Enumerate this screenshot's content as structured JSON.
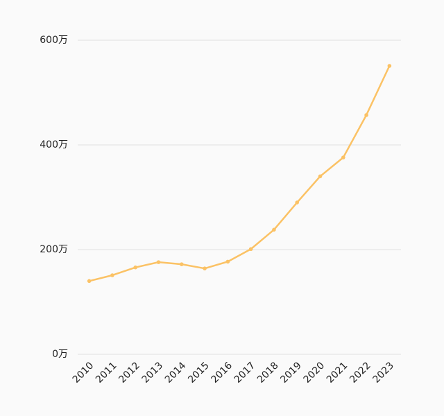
{
  "chart_data": {
    "type": "line",
    "categories": [
      "2010",
      "2011",
      "2012",
      "2013",
      "2014",
      "2015",
      "2016",
      "2017",
      "2018",
      "2019",
      "2020",
      "2021",
      "2022",
      "2023"
    ],
    "values": [
      140,
      151,
      166,
      176,
      172,
      164,
      177,
      201,
      238,
      290,
      340,
      376,
      457,
      551
    ],
    "color": "#fbc265",
    "ylim": [
      0,
      600
    ],
    "yticks": [
      {
        "value": 0,
        "label": "0万"
      },
      {
        "value": 200,
        "label": "200万"
      },
      {
        "value": 400,
        "label": "400万"
      },
      {
        "value": 600,
        "label": "600万"
      }
    ],
    "grid": true
  }
}
